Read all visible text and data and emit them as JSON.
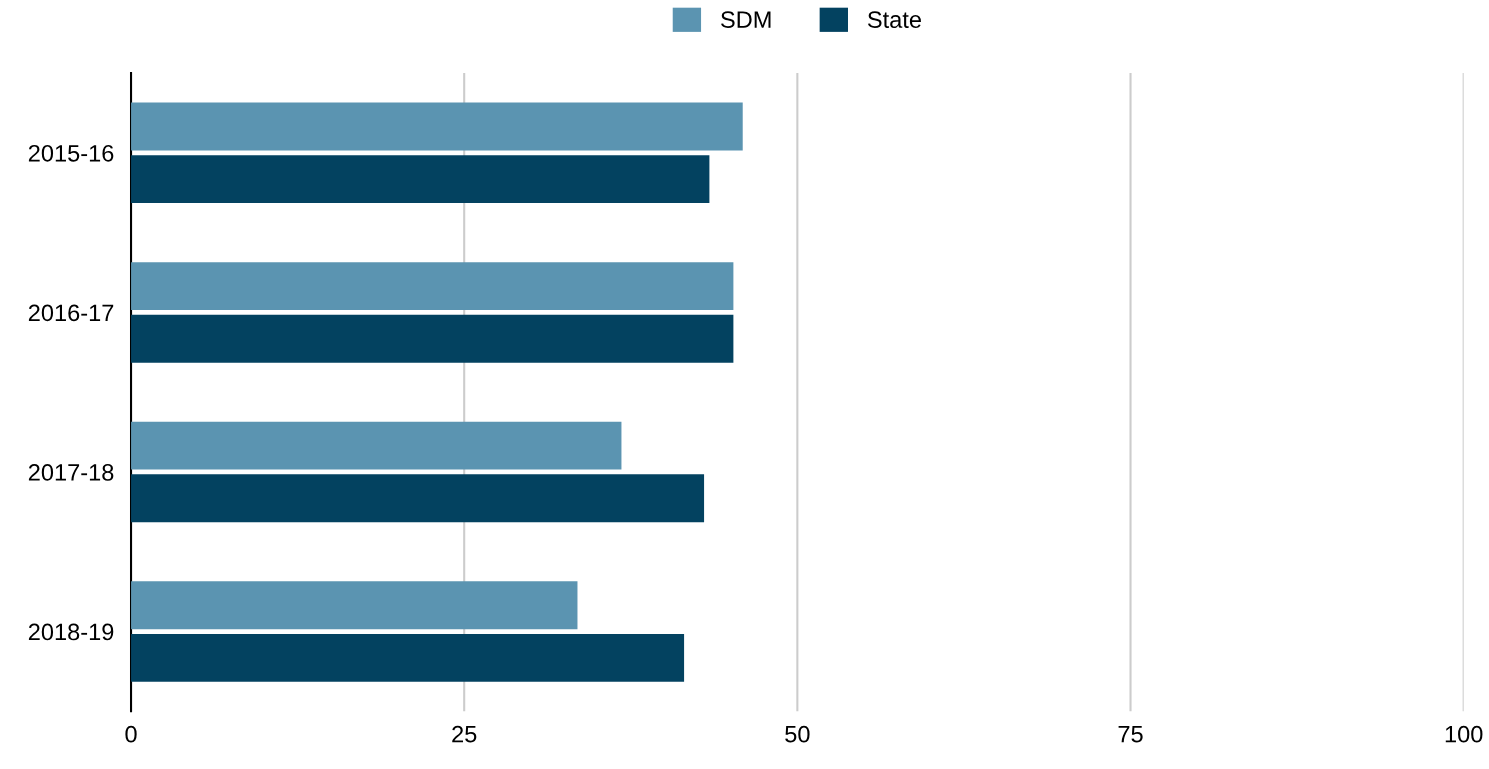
{
  "chart_data": {
    "type": "bar",
    "orientation": "horizontal",
    "categories": [
      "2015-16",
      "2016-17",
      "2017-18",
      "2018-19"
    ],
    "series": [
      {
        "name": "SDM",
        "color": "#5b94b1",
        "values": [
          45.9,
          45.2,
          36.8,
          33.5
        ]
      },
      {
        "name": "State",
        "color": "#034260",
        "values": [
          43.4,
          45.2,
          43.0,
          41.5
        ]
      }
    ],
    "xlim": [
      0,
      100
    ],
    "xticks": [
      0,
      25,
      50,
      75,
      100
    ],
    "grid": "x",
    "legend": "top"
  }
}
